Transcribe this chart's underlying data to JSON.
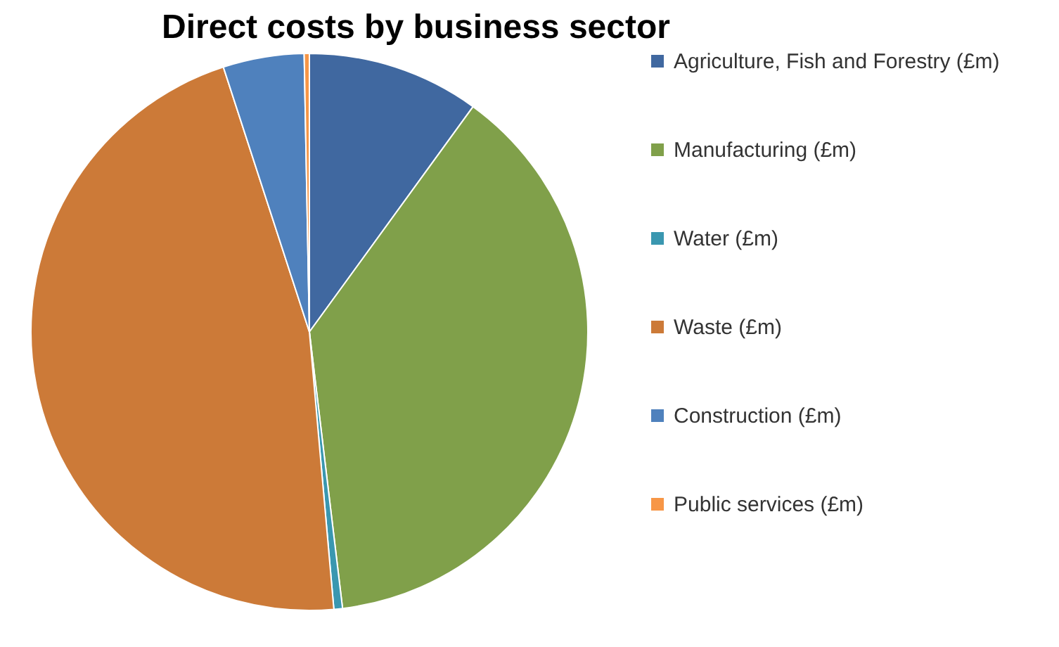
{
  "chart_data": {
    "type": "pie",
    "title": "Direct costs by business sector",
    "categories": [
      "Agriculture, Fish and Forestry (£m)",
      "Manufacturing (£m)",
      "Water (£m)",
      "Waste (£m)",
      "Construction (£m)",
      "Public services (£m)"
    ],
    "values": [
      10.0,
      38.1,
      0.5,
      46.4,
      4.7,
      0.3
    ],
    "colors": [
      "#4068a0",
      "#80a04a",
      "#3a97b0",
      "#cc7a38",
      "#4f81bd",
      "#f79646"
    ],
    "legend": "right"
  }
}
